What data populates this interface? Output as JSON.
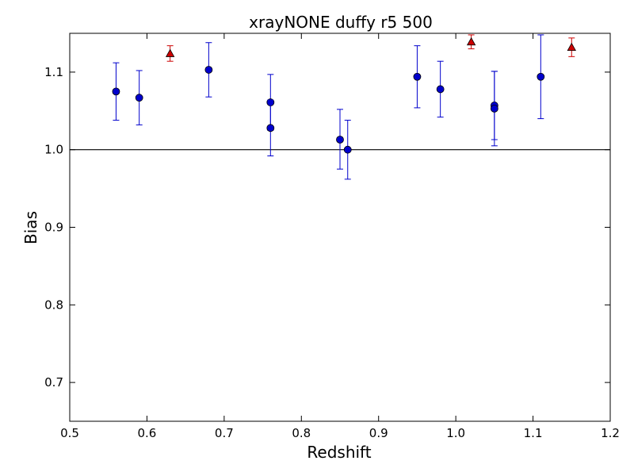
{
  "chart_data": {
    "type": "scatter",
    "title": "xrayNONE duffy r5 500",
    "xlabel": "Redshift",
    "ylabel": "Bias",
    "xlim": [
      0.5,
      1.2
    ],
    "ylim": [
      0.65,
      1.15
    ],
    "xticks": [
      "0.5",
      "0.6",
      "0.7",
      "0.8",
      "0.9",
      "1.0",
      "1.1",
      "1.2"
    ],
    "yticks": [
      "0.7",
      "0.8",
      "0.9",
      "1.0",
      "1.1"
    ],
    "reference_line": 1.0,
    "grid": false,
    "legend": "none",
    "series": [
      {
        "marker": "circle",
        "color": "#0000cc",
        "error_color": "#0000cc",
        "points": [
          {
            "x": 0.56,
            "y": 1.075,
            "lo": 1.038,
            "hi": 1.112
          },
          {
            "x": 0.59,
            "y": 1.067,
            "lo": 1.032,
            "hi": 1.102
          },
          {
            "x": 0.68,
            "y": 1.103,
            "lo": 1.068,
            "hi": 1.138
          },
          {
            "x": 0.76,
            "y": 1.061,
            "lo": 1.025,
            "hi": 1.097
          },
          {
            "x": 0.76,
            "y": 1.028,
            "lo": 0.992,
            "hi": 1.064
          },
          {
            "x": 0.85,
            "y": 1.013,
            "lo": 0.975,
            "hi": 1.052
          },
          {
            "x": 0.86,
            "y": 1.0,
            "lo": 0.962,
            "hi": 1.038
          },
          {
            "x": 0.95,
            "y": 1.094,
            "lo": 1.054,
            "hi": 1.134
          },
          {
            "x": 0.98,
            "y": 1.078,
            "lo": 1.042,
            "hi": 1.114
          },
          {
            "x": 1.05,
            "y": 1.057,
            "lo": 1.013,
            "hi": 1.101
          },
          {
            "x": 1.05,
            "y": 1.053,
            "lo": 1.005,
            "hi": 1.101
          },
          {
            "x": 1.11,
            "y": 1.094,
            "lo": 1.04,
            "hi": 1.148
          }
        ]
      },
      {
        "marker": "triangle",
        "color": "#cc0000",
        "error_color": "#cc0000",
        "points": [
          {
            "x": 0.63,
            "y": 1.124,
            "lo": 1.114,
            "hi": 1.134
          },
          {
            "x": 1.02,
            "y": 1.139,
            "lo": 1.13,
            "hi": 1.148
          },
          {
            "x": 1.15,
            "y": 1.132,
            "lo": 1.12,
            "hi": 1.144
          }
        ]
      }
    ]
  }
}
